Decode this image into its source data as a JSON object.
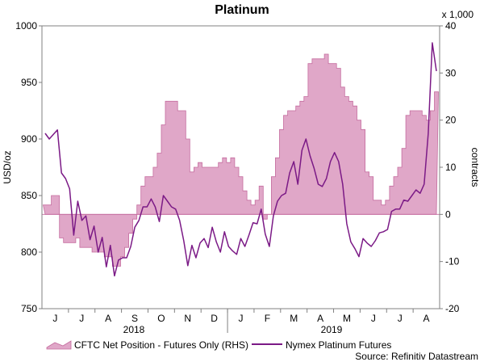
{
  "chart_data": {
    "type": "area",
    "title": "Platinum",
    "ylabel_left": "USD/oz",
    "ylabel_right": "contracts",
    "right_multiplier": "x 1,000",
    "left_ticks": [
      750,
      800,
      850,
      900,
      950,
      1000
    ],
    "right_ticks": [
      -20,
      -10,
      0,
      10,
      20,
      30,
      40
    ],
    "ylim_left": [
      750,
      1000
    ],
    "ylim_right": [
      -20,
      40
    ],
    "month_labels": [
      "J",
      "J",
      "A",
      "S",
      "O",
      "N",
      "D",
      "J",
      "F",
      "M",
      "A",
      "M",
      "J",
      "J",
      "A"
    ],
    "year_labels": [
      "2018",
      "2019"
    ],
    "source": "Source: Refinitiv Datastream",
    "grid": false,
    "legend_position": "bottom",
    "colors": {
      "area_fill": "#e0a7c8",
      "area_stroke": "#c56d9f",
      "line": "#7b1a86"
    },
    "series": [
      {
        "name": "CFTC Net Position - Futures Only (RHS)",
        "axis": "right",
        "kind": "area",
        "x": [
          0,
          1,
          2,
          3,
          4,
          5,
          6,
          7,
          8,
          9,
          10,
          11,
          12,
          13,
          14,
          15,
          16,
          17,
          18,
          19,
          20,
          21,
          22,
          23,
          24,
          25,
          26,
          27,
          28,
          29,
          30,
          31,
          32,
          33,
          34,
          35,
          36,
          37,
          38,
          39,
          40,
          41,
          42,
          43,
          44,
          45,
          46,
          47,
          48,
          49,
          50,
          51,
          52,
          53,
          54,
          55,
          56,
          57,
          58,
          59,
          60,
          61,
          62,
          63,
          64,
          65,
          66,
          67,
          68,
          69,
          70,
          71,
          72,
          73,
          74,
          75,
          76,
          77,
          78,
          79,
          80,
          81,
          82,
          83,
          84,
          85,
          86,
          87,
          88,
          89,
          90,
          91,
          92,
          93,
          94,
          95,
          96
        ],
        "y": [
          2,
          2,
          4,
          4,
          -5,
          -6,
          -6,
          -6,
          -5,
          -7,
          -7,
          -7,
          -8,
          -8,
          -8,
          -9,
          -9,
          -11,
          -11,
          -9,
          -7,
          -4,
          -1,
          2,
          6,
          8,
          8,
          10,
          13,
          19,
          24,
          24,
          24,
          22,
          22,
          16,
          9,
          10,
          11,
          10,
          10,
          10,
          10,
          11,
          12,
          11,
          12,
          10,
          8,
          5,
          3,
          2,
          3,
          6,
          -1,
          0,
          8,
          12,
          18,
          21,
          22,
          22,
          23,
          24,
          25,
          32,
          33,
          33,
          33,
          34,
          32,
          32,
          31,
          27,
          25,
          24,
          23,
          20,
          18,
          9,
          8,
          3,
          3,
          2,
          3,
          6,
          8,
          10,
          14,
          21,
          22,
          22,
          22,
          21,
          20,
          22,
          26
        ]
      },
      {
        "name": "Nymex Platinum Futures",
        "axis": "left",
        "kind": "line",
        "x": [
          0,
          1,
          2,
          3,
          4,
          5,
          6,
          7,
          8,
          9,
          10,
          11,
          12,
          13,
          14,
          15,
          16,
          17,
          18,
          19,
          20,
          21,
          22,
          23,
          24,
          25,
          26,
          27,
          28,
          29,
          30,
          31,
          32,
          33,
          34,
          35,
          36,
          37,
          38,
          39,
          40,
          41,
          42,
          43,
          44,
          45,
          46,
          47,
          48,
          49,
          50,
          51,
          52,
          53,
          54,
          55,
          56,
          57,
          58,
          59,
          60,
          61,
          62,
          63,
          64,
          65,
          66,
          67,
          68,
          69,
          70,
          71,
          72,
          73,
          74,
          75,
          76,
          77,
          78,
          79,
          80,
          81,
          82,
          83,
          84,
          85,
          86,
          87,
          88,
          89,
          90,
          91,
          92,
          93,
          94,
          95,
          96
        ],
        "y": [
          905,
          900,
          904,
          908,
          870,
          865,
          856,
          815,
          845,
          828,
          832,
          811,
          823,
          800,
          813,
          787,
          806,
          779,
          793,
          795,
          795,
          805,
          822,
          828,
          840,
          840,
          847,
          840,
          827,
          850,
          845,
          840,
          838,
          828,
          810,
          788,
          806,
          795,
          808,
          812,
          804,
          822,
          809,
          800,
          818,
          805,
          801,
          798,
          812,
          805,
          815,
          826,
          825,
          838,
          816,
          805,
          832,
          845,
          850,
          852,
          870,
          880,
          860,
          890,
          900,
          885,
          874,
          860,
          858,
          865,
          880,
          888,
          880,
          860,
          825,
          809,
          803,
          796,
          812,
          808,
          805,
          810,
          817,
          818,
          820,
          836,
          838,
          838,
          846,
          845,
          850,
          855,
          852,
          860,
          905,
          985,
          960
        ]
      }
    ]
  }
}
